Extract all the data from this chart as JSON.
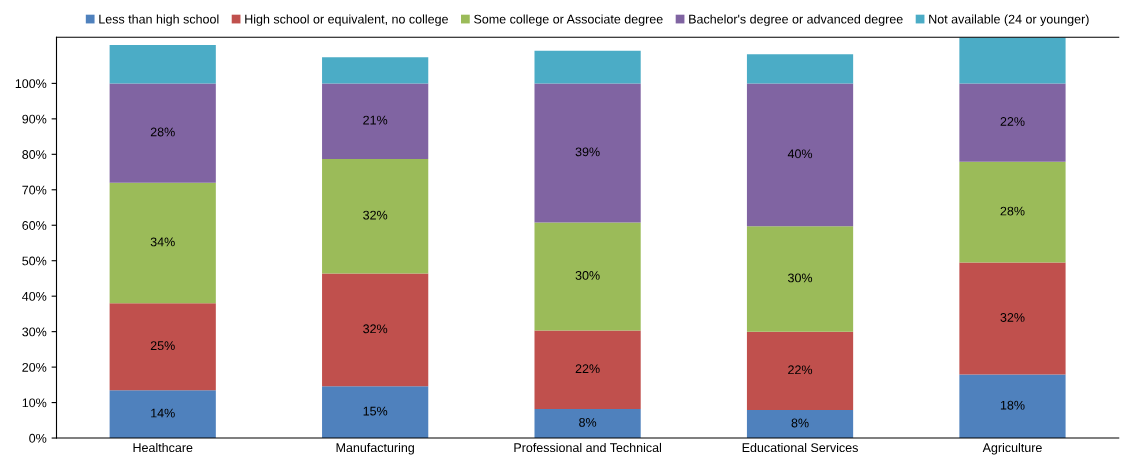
{
  "chart_data": {
    "type": "bar",
    "stacked": true,
    "categories": [
      "Healthcare",
      "Manufacturing",
      "Professional and Technical",
      "Educational Services",
      "Agriculture"
    ],
    "ylim": [
      0,
      113
    ],
    "yticks": [
      {
        "value": 0,
        "label": "0%"
      },
      {
        "value": 10,
        "label": "10%"
      },
      {
        "value": 20,
        "label": "20%"
      },
      {
        "value": 30,
        "label": "30%"
      },
      {
        "value": 40,
        "label": "40%"
      },
      {
        "value": 50,
        "label": "50%"
      },
      {
        "value": 60,
        "label": "60%"
      },
      {
        "value": 70,
        "label": "70%"
      },
      {
        "value": 80,
        "label": "80%"
      },
      {
        "value": 90,
        "label": "90%"
      },
      {
        "value": 100,
        "label": "100%"
      }
    ],
    "legend": "top",
    "grid": false,
    "series": [
      {
        "name": "Less than high school",
        "color": "#4f81bd",
        "values": [
          13.5,
          14.6,
          8.2,
          7.9,
          17.9
        ],
        "value_labels": [
          "14%",
          "15%",
          "8%",
          "8%",
          "18%"
        ]
      },
      {
        "name": "High school or equivalent, no college",
        "color": "#c0504d",
        "values": [
          24.5,
          31.8,
          22.1,
          22.1,
          31.6
        ],
        "value_labels": [
          "25%",
          "32%",
          "22%",
          "22%",
          "32%"
        ]
      },
      {
        "name": "Some college or Associate degree",
        "color": "#9bbb59",
        "values": [
          34,
          32.3,
          30.5,
          29.7,
          28.4
        ],
        "value_labels": [
          "34%",
          "32%",
          "30%",
          "30%",
          "28%"
        ]
      },
      {
        "name": "Bachelor's degree or advanced degree",
        "color": "#8064a2",
        "values": [
          28,
          21.3,
          39.2,
          40.3,
          22.1
        ],
        "value_labels": [
          "28%",
          "21%",
          "39%",
          "40%",
          "22%"
        ]
      },
      {
        "name": "Not available (24 or younger)",
        "color": "#4bacc6",
        "values": [
          10.8,
          7.4,
          9.2,
          8.2,
          13
        ]
      }
    ]
  }
}
